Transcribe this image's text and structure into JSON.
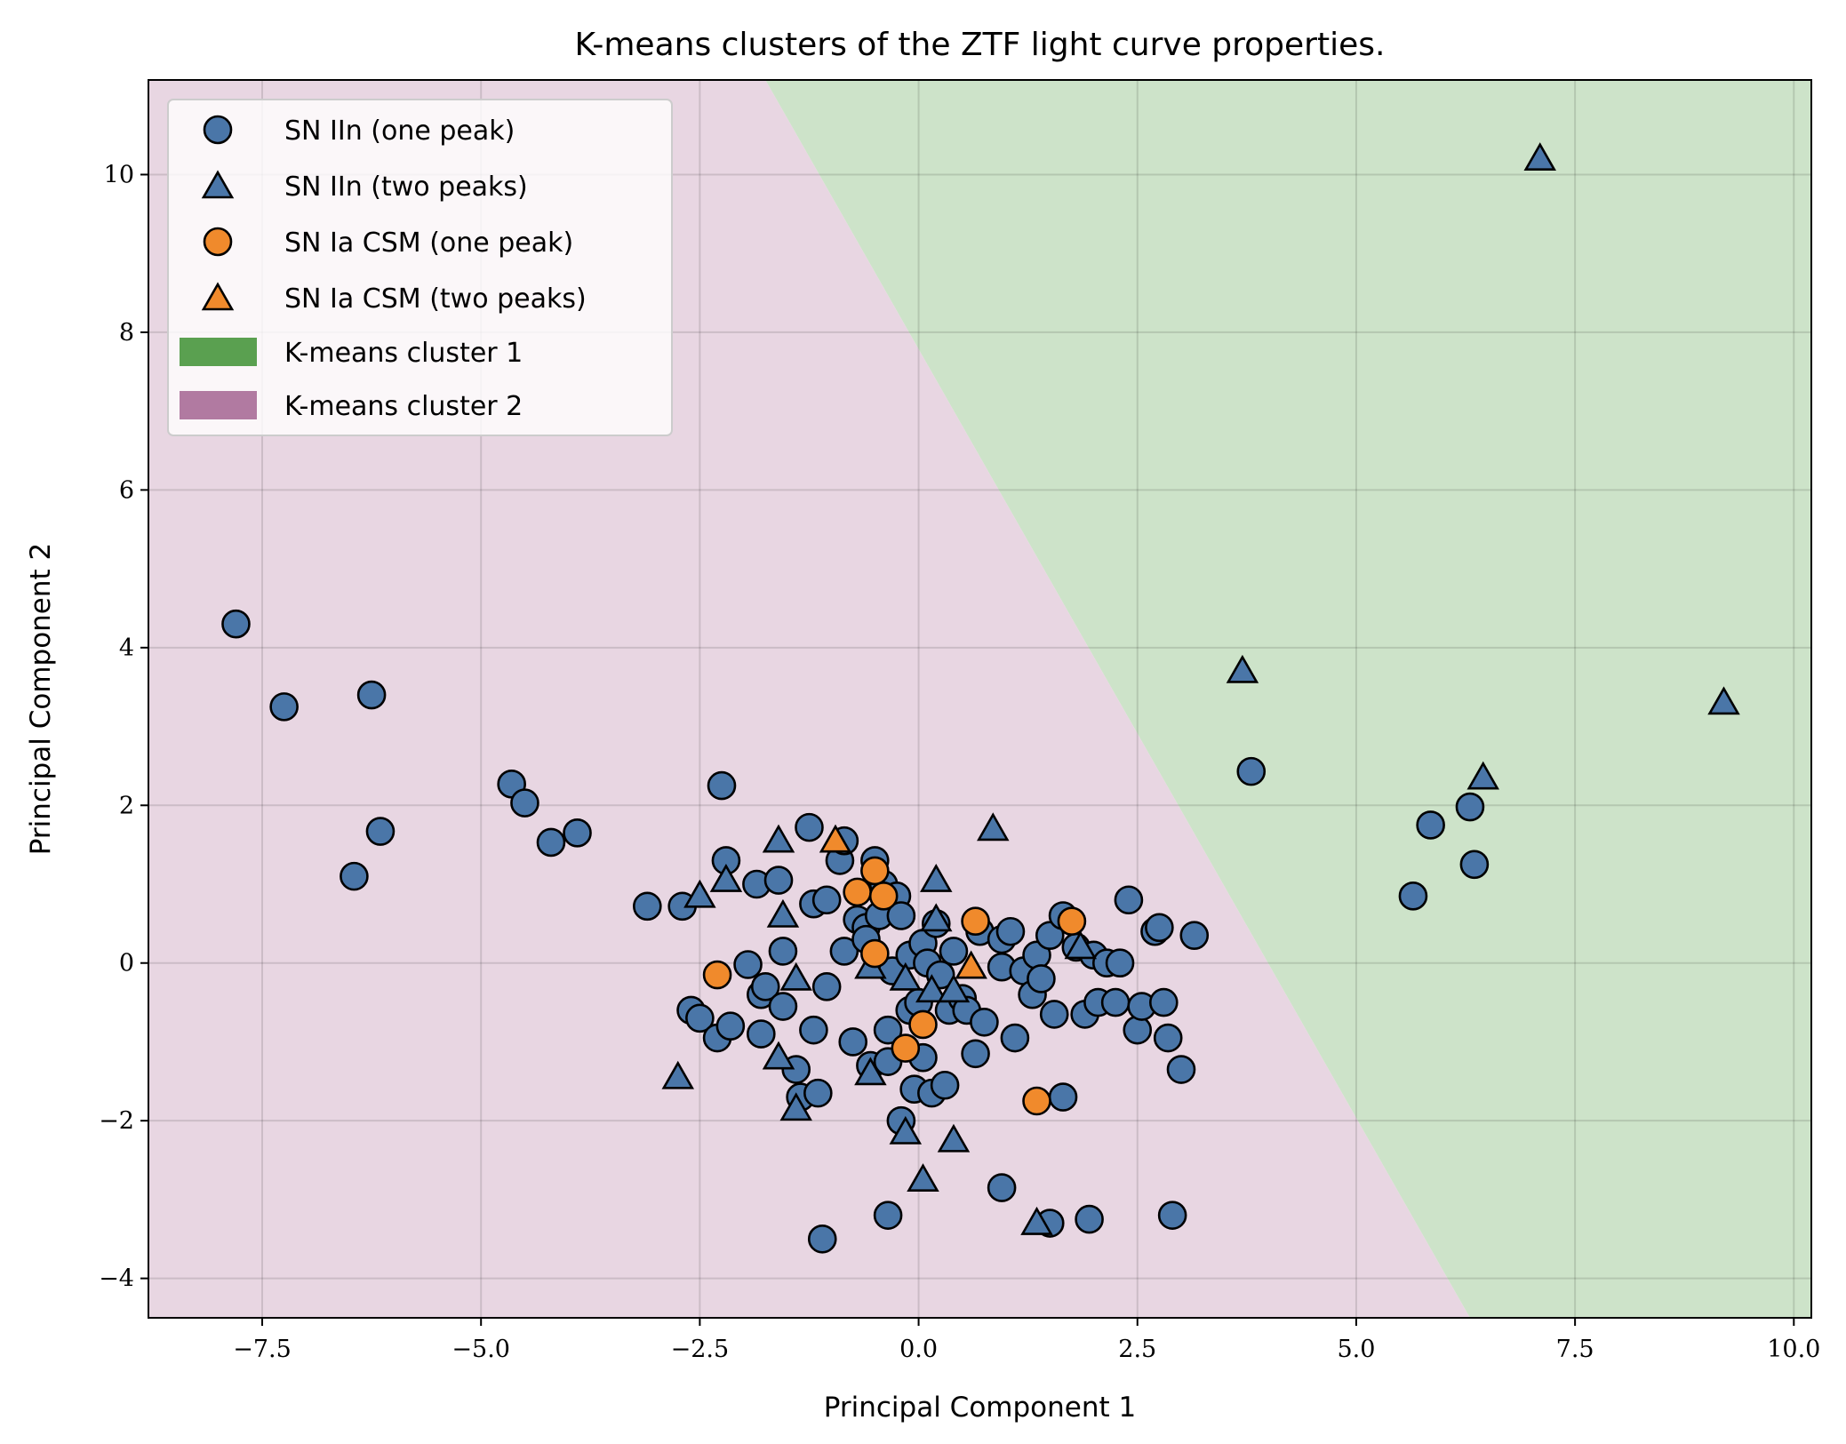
{
  "chart_data": {
    "type": "scatter",
    "title": "K-means clusters of the ZTF light curve properties.",
    "xlabel": "Principal Component 1",
    "ylabel": "Principal Component 2",
    "xlim": [
      -8.8,
      10.2
    ],
    "ylim": [
      -4.5,
      11.2
    ],
    "xticks": [
      -7.5,
      -5.0,
      -2.5,
      0.0,
      2.5,
      5.0,
      7.5,
      10.0
    ],
    "xtick_labels": [
      "−7.5",
      "−5.0",
      "−2.5",
      "0.0",
      "2.5",
      "5.0",
      "7.5",
      "10.0"
    ],
    "yticks": [
      -4,
      -2,
      0,
      2,
      4,
      6,
      8,
      10
    ],
    "ytick_labels": [
      "−4",
      "−2",
      "0",
      "2",
      "4",
      "6",
      "8",
      "10"
    ],
    "grid": true,
    "legend_position": "top-left",
    "decision_boundary": [
      [
        -1.75,
        11.2
      ],
      [
        6.3,
        -4.5
      ]
    ],
    "regions": [
      {
        "name": "K-means cluster 1",
        "side": "right",
        "color": "#cde3c9",
        "legend_color": "#5aa050"
      },
      {
        "name": "K-means cluster 2",
        "side": "left",
        "color": "#e8d6e2",
        "legend_color": "#b17aa1"
      }
    ],
    "series": [
      {
        "name": "SN IIn (one peak)",
        "marker": "circle",
        "color": "#4a76a8",
        "points": [
          [
            -7.8,
            4.3
          ],
          [
            -7.25,
            3.25
          ],
          [
            -6.25,
            3.4
          ],
          [
            -6.15,
            1.67
          ],
          [
            -6.45,
            1.1
          ],
          [
            -4.65,
            2.27
          ],
          [
            -4.5,
            2.03
          ],
          [
            -4.2,
            1.53
          ],
          [
            -3.9,
            1.65
          ],
          [
            -3.1,
            0.72
          ],
          [
            -2.7,
            0.72
          ],
          [
            -2.25,
            2.25
          ],
          [
            -2.2,
            1.3
          ],
          [
            -2.6,
            -0.6
          ],
          [
            -2.5,
            -0.7
          ],
          [
            -2.3,
            -0.95
          ],
          [
            -2.15,
            -0.8
          ],
          [
            -1.95,
            -0.02
          ],
          [
            -1.85,
            1.0
          ],
          [
            -1.8,
            -0.4
          ],
          [
            -1.75,
            -0.3
          ],
          [
            -1.8,
            -0.9
          ],
          [
            -1.6,
            1.05
          ],
          [
            -1.55,
            0.15
          ],
          [
            -1.55,
            -0.55
          ],
          [
            -1.4,
            -1.35
          ],
          [
            -1.35,
            -1.7
          ],
          [
            -1.25,
            1.72
          ],
          [
            -1.2,
            0.75
          ],
          [
            -1.2,
            -0.85
          ],
          [
            -1.15,
            -1.65
          ],
          [
            -1.05,
            0.8
          ],
          [
            -1.05,
            -0.3
          ],
          [
            -0.9,
            1.3
          ],
          [
            -0.85,
            1.55
          ],
          [
            -0.85,
            0.15
          ],
          [
            -0.75,
            -1.0
          ],
          [
            -0.7,
            0.55
          ],
          [
            -0.6,
            0.45
          ],
          [
            -0.6,
            0.3
          ],
          [
            -0.55,
            -1.3
          ],
          [
            -0.5,
            1.3
          ],
          [
            -0.45,
            0.6
          ],
          [
            -0.4,
            1.0
          ],
          [
            -0.35,
            -0.85
          ],
          [
            -0.35,
            -1.25
          ],
          [
            -0.3,
            -0.1
          ],
          [
            -0.25,
            0.85
          ],
          [
            -0.2,
            0.6
          ],
          [
            -0.2,
            -2.0
          ],
          [
            -0.1,
            0.1
          ],
          [
            -0.1,
            -0.6
          ],
          [
            -0.05,
            -1.6
          ],
          [
            0.0,
            -0.5
          ],
          [
            0.05,
            0.25
          ],
          [
            0.05,
            -1.2
          ],
          [
            0.1,
            0.0
          ],
          [
            0.15,
            -1.65
          ],
          [
            0.2,
            0.5
          ],
          [
            0.25,
            -0.15
          ],
          [
            0.3,
            -1.55
          ],
          [
            0.35,
            -0.6
          ],
          [
            0.4,
            0.15
          ],
          [
            0.5,
            -0.45
          ],
          [
            0.55,
            -0.6
          ],
          [
            0.65,
            -1.15
          ],
          [
            0.7,
            0.4
          ],
          [
            0.75,
            -0.75
          ],
          [
            0.95,
            0.3
          ],
          [
            0.95,
            -0.05
          ],
          [
            1.05,
            0.4
          ],
          [
            1.1,
            -0.95
          ],
          [
            1.2,
            -0.1
          ],
          [
            1.3,
            -0.4
          ],
          [
            1.35,
            0.1
          ],
          [
            1.4,
            -0.2
          ],
          [
            1.5,
            0.35
          ],
          [
            1.55,
            -0.65
          ],
          [
            1.65,
            0.6
          ],
          [
            1.65,
            -1.7
          ],
          [
            1.8,
            0.2
          ],
          [
            1.9,
            -0.65
          ],
          [
            2.0,
            0.1
          ],
          [
            2.05,
            -0.5
          ],
          [
            2.15,
            0.0
          ],
          [
            2.25,
            -0.5
          ],
          [
            2.3,
            0.0
          ],
          [
            2.4,
            0.8
          ],
          [
            2.5,
            -0.85
          ],
          [
            2.55,
            -0.55
          ],
          [
            2.7,
            0.4
          ],
          [
            2.75,
            0.45
          ],
          [
            2.8,
            -0.5
          ],
          [
            2.85,
            -0.95
          ],
          [
            3.0,
            -1.35
          ],
          [
            3.15,
            0.35
          ],
          [
            0.95,
            -2.85
          ],
          [
            1.5,
            -3.3
          ],
          [
            1.95,
            -3.25
          ],
          [
            2.9,
            -3.2
          ],
          [
            -0.35,
            -3.2
          ],
          [
            -1.1,
            -3.5
          ],
          [
            3.8,
            2.43
          ],
          [
            5.65,
            0.85
          ],
          [
            5.85,
            1.75
          ],
          [
            6.3,
            1.98
          ],
          [
            6.35,
            1.25
          ]
        ]
      },
      {
        "name": "SN IIn (two peaks)",
        "marker": "triangle",
        "color": "#4a76a8",
        "points": [
          [
            -2.5,
            0.85
          ],
          [
            -2.2,
            1.05
          ],
          [
            -1.6,
            1.55
          ],
          [
            -1.55,
            0.6
          ],
          [
            -1.4,
            -0.2
          ],
          [
            -1.6,
            -1.2
          ],
          [
            -1.4,
            -1.85
          ],
          [
            -2.75,
            -1.45
          ],
          [
            -0.55,
            -0.05
          ],
          [
            -0.55,
            -1.4
          ],
          [
            -0.15,
            -0.2
          ],
          [
            0.15,
            -0.35
          ],
          [
            0.2,
            1.05
          ],
          [
            0.2,
            0.55
          ],
          [
            0.4,
            -0.35
          ],
          [
            -0.15,
            -2.15
          ],
          [
            0.05,
            -2.75
          ],
          [
            0.4,
            -2.25
          ],
          [
            0.85,
            1.7
          ],
          [
            1.85,
            0.2
          ],
          [
            1.35,
            -3.3
          ],
          [
            3.7,
            3.7
          ],
          [
            6.45,
            2.35
          ],
          [
            7.1,
            10.2
          ],
          [
            9.2,
            3.3
          ]
        ]
      },
      {
        "name": "SN Ia CSM (one peak)",
        "marker": "circle",
        "color": "#f08a2c",
        "points": [
          [
            -2.3,
            -0.15
          ],
          [
            -0.7,
            0.9
          ],
          [
            -0.5,
            1.17
          ],
          [
            -0.4,
            0.85
          ],
          [
            -0.5,
            0.12
          ],
          [
            0.65,
            0.53
          ],
          [
            1.75,
            0.53
          ],
          [
            0.05,
            -0.78
          ],
          [
            -0.15,
            -1.08
          ],
          [
            1.35,
            -1.75
          ]
        ]
      },
      {
        "name": "SN Ia CSM (two peaks)",
        "marker": "triangle",
        "color": "#f08a2c",
        "points": [
          [
            -0.95,
            1.55
          ],
          [
            0.6,
            -0.05
          ]
        ]
      }
    ]
  }
}
